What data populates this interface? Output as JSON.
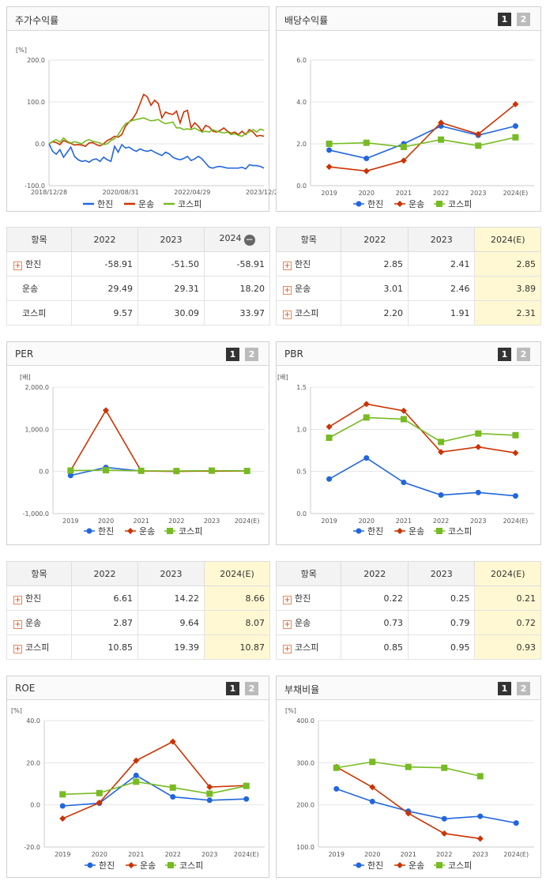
{
  "colors": {
    "hanjin": "#2266dd",
    "unsong": "#cc3300",
    "kospi": "#77bb22"
  },
  "legend": [
    "한진",
    "운송",
    "코스피"
  ],
  "pager": [
    "1",
    "2"
  ],
  "panels": {
    "stock": {
      "title": "주가수익률"
    },
    "div": {
      "title": "배당수익률"
    },
    "per": {
      "title": "PER"
    },
    "pbr": {
      "title": "PBR"
    },
    "roe": {
      "title": "ROE"
    },
    "debt": {
      "title": "부채비율"
    }
  },
  "tables": {
    "stock": {
      "headers": [
        "항목",
        "2022",
        "2023",
        "2024"
      ],
      "rows": [
        {
          "name": "한진",
          "plus": true,
          "v": [
            "-58.91",
            "-51.50",
            "-58.91"
          ]
        },
        {
          "name": "운송",
          "plus": false,
          "v": [
            "29.49",
            "29.31",
            "18.20"
          ]
        },
        {
          "name": "코스피",
          "plus": false,
          "v": [
            "9.57",
            "30.09",
            "33.97"
          ]
        }
      ]
    },
    "div": {
      "headers": [
        "항목",
        "2022",
        "2023",
        "2024(E)"
      ],
      "rows": [
        {
          "name": "한진",
          "plus": true,
          "v": [
            "2.85",
            "2.41",
            "2.85"
          ]
        },
        {
          "name": "운송",
          "plus": true,
          "v": [
            "3.01",
            "2.46",
            "3.89"
          ]
        },
        {
          "name": "코스피",
          "plus": true,
          "v": [
            "2.20",
            "1.91",
            "2.31"
          ]
        }
      ]
    },
    "per": {
      "headers": [
        "항목",
        "2022",
        "2023",
        "2024(E)"
      ],
      "rows": [
        {
          "name": "한진",
          "plus": true,
          "v": [
            "6.61",
            "14.22",
            "8.66"
          ]
        },
        {
          "name": "운송",
          "plus": true,
          "v": [
            "2.87",
            "9.64",
            "8.07"
          ]
        },
        {
          "name": "코스피",
          "plus": true,
          "v": [
            "10.85",
            "19.39",
            "10.87"
          ]
        }
      ]
    },
    "pbr": {
      "headers": [
        "항목",
        "2022",
        "2023",
        "2024(E)"
      ],
      "rows": [
        {
          "name": "한진",
          "plus": true,
          "v": [
            "0.22",
            "0.25",
            "0.21"
          ]
        },
        {
          "name": "운송",
          "plus": true,
          "v": [
            "0.73",
            "0.79",
            "0.72"
          ]
        },
        {
          "name": "코스피",
          "plus": true,
          "v": [
            "0.85",
            "0.95",
            "0.93"
          ]
        }
      ]
    }
  },
  "chart_data": [
    {
      "id": "stock",
      "type": "line",
      "unit": "[%]",
      "ylim": [
        -100,
        200
      ],
      "yticks": [
        "200.0",
        "100.0",
        "0.0",
        "-100.0"
      ],
      "ytickvals": [
        200,
        100,
        0,
        -100
      ],
      "xticks": [
        "2018/12/28",
        "2020/08/31",
        "2022/04/29",
        "2023/12/28"
      ],
      "series": [
        {
          "name": "한진",
          "values": [
            0,
            -18,
            -25,
            -14,
            -32,
            -20,
            -8,
            -30,
            -38,
            -42,
            -40,
            -44,
            -38,
            -36,
            -42,
            -32,
            -38,
            -42,
            -6,
            -20,
            -2,
            -10,
            -8,
            -14,
            -18,
            -12,
            -16,
            -18,
            -15,
            -20,
            -24,
            -28,
            -20,
            -24,
            -32,
            -36,
            -38,
            -35,
            -30,
            -40,
            -36,
            -30,
            -36,
            -46,
            -56,
            -58,
            -55,
            -54,
            -56,
            -58,
            -58,
            -58,
            -58,
            -56,
            -60,
            -50,
            -52,
            -52,
            -54,
            -58
          ]
        },
        {
          "name": "운송",
          "values": [
            0,
            5,
            3,
            -2,
            8,
            4,
            1,
            -3,
            -2,
            -3,
            -6,
            2,
            3,
            -2,
            -5,
            0,
            8,
            12,
            18,
            16,
            22,
            42,
            52,
            60,
            74,
            96,
            118,
            112,
            92,
            104,
            96,
            62,
            76,
            72,
            70,
            78,
            50,
            76,
            80,
            38,
            50,
            42,
            30,
            44,
            40,
            30,
            28,
            32,
            38,
            30,
            25,
            28,
            22,
            30,
            22,
            34,
            28,
            18,
            20,
            18
          ]
        },
        {
          "name": "코스피",
          "values": [
            0,
            6,
            10,
            4,
            14,
            6,
            2,
            5,
            3,
            0,
            7,
            10,
            6,
            4,
            2,
            -2,
            0,
            8,
            12,
            22,
            36,
            48,
            52,
            56,
            58,
            60,
            62,
            58,
            55,
            56,
            58,
            52,
            48,
            50,
            52,
            38,
            38,
            34,
            36,
            34,
            38,
            33,
            28,
            30,
            28,
            34,
            30,
            28,
            26,
            28,
            22,
            24,
            20,
            18,
            25,
            28,
            34,
            28,
            35,
            32
          ]
        }
      ]
    },
    {
      "id": "div",
      "type": "line",
      "unit": "",
      "ylim": [
        0,
        6
      ],
      "yticks": [
        "6.0",
        "4.0",
        "2.0",
        "0.0"
      ],
      "ytickvals": [
        6,
        4,
        2,
        0
      ],
      "categories": [
        "2019",
        "2020",
        "2021",
        "2022",
        "2023",
        "2024(E)"
      ],
      "series": [
        {
          "name": "한진",
          "values": [
            1.7,
            1.3,
            2.0,
            2.85,
            2.41,
            2.85
          ]
        },
        {
          "name": "운송",
          "values": [
            0.9,
            0.7,
            1.2,
            3.01,
            2.46,
            3.89
          ]
        },
        {
          "name": "코스피",
          "values": [
            2.0,
            2.05,
            1.85,
            2.2,
            1.91,
            2.31
          ]
        }
      ]
    },
    {
      "id": "per",
      "type": "line",
      "unit": "[배]",
      "ylim": [
        -1000,
        2000
      ],
      "yticks": [
        "2,000.0",
        "1,000.0",
        "0.0",
        "-1,000.0"
      ],
      "ytickvals": [
        2000,
        1000,
        0,
        -1000
      ],
      "categories": [
        "2019",
        "2020",
        "2021",
        "2022",
        "2023",
        "2024(E)"
      ],
      "series": [
        {
          "name": "한진",
          "values": [
            -95,
            95,
            10,
            6.61,
            14.22,
            8.66
          ]
        },
        {
          "name": "운송",
          "values": [
            20,
            1450,
            10,
            2.87,
            9.64,
            8.07
          ]
        },
        {
          "name": "코스피",
          "values": [
            22,
            30,
            15,
            10.85,
            19.39,
            10.87
          ]
        }
      ]
    },
    {
      "id": "pbr",
      "type": "line",
      "unit": "[배]",
      "ylim": [
        0,
        1.5
      ],
      "yticks": [
        "1.5",
        "1.0",
        "0.5",
        "0.0"
      ],
      "ytickvals": [
        1.5,
        1.0,
        0.5,
        0
      ],
      "categories": [
        "2019",
        "2020",
        "2021",
        "2022",
        "2023",
        "2024(E)"
      ],
      "series": [
        {
          "name": "한진",
          "values": [
            0.41,
            0.66,
            0.37,
            0.22,
            0.25,
            0.21
          ]
        },
        {
          "name": "운송",
          "values": [
            1.03,
            1.3,
            1.22,
            0.73,
            0.79,
            0.72
          ]
        },
        {
          "name": "코스피",
          "values": [
            0.9,
            1.14,
            1.12,
            0.85,
            0.95,
            0.93
          ]
        }
      ]
    },
    {
      "id": "roe",
      "type": "line",
      "unit": "[%]",
      "ylim": [
        -20,
        40
      ],
      "yticks": [
        "40.0",
        "20.0",
        "0.0",
        "-20.0"
      ],
      "ytickvals": [
        40,
        20,
        0,
        -20
      ],
      "categories": [
        "2019",
        "2020",
        "2021",
        "2022",
        "2023",
        "2024(E)"
      ],
      "series": [
        {
          "name": "한진",
          "values": [
            -0.5,
            0.8,
            14,
            3.8,
            2.2,
            2.8
          ]
        },
        {
          "name": "운송",
          "values": [
            -6.5,
            1,
            21,
            30,
            8.5,
            9.2
          ]
        },
        {
          "name": "코스피",
          "values": [
            5,
            5.6,
            11,
            8.2,
            5.3,
            9
          ]
        }
      ]
    },
    {
      "id": "debt",
      "type": "line",
      "unit": "[%]",
      "ylim": [
        100,
        400
      ],
      "yticks": [
        "400.0",
        "300.0",
        "200.0",
        "100.0"
      ],
      "ytickvals": [
        400,
        300,
        200,
        100
      ],
      "categories": [
        "2019",
        "2020",
        "2021",
        "2022",
        "2023",
        "2024(E)"
      ],
      "series": [
        {
          "name": "한진",
          "values": [
            238,
            208,
            185,
            167,
            173,
            157
          ]
        },
        {
          "name": "운송",
          "values": [
            290,
            242,
            180,
            132,
            120,
            null
          ]
        },
        {
          "name": "코스피",
          "values": [
            288,
            302,
            290,
            288,
            268,
            null
          ]
        }
      ]
    }
  ]
}
